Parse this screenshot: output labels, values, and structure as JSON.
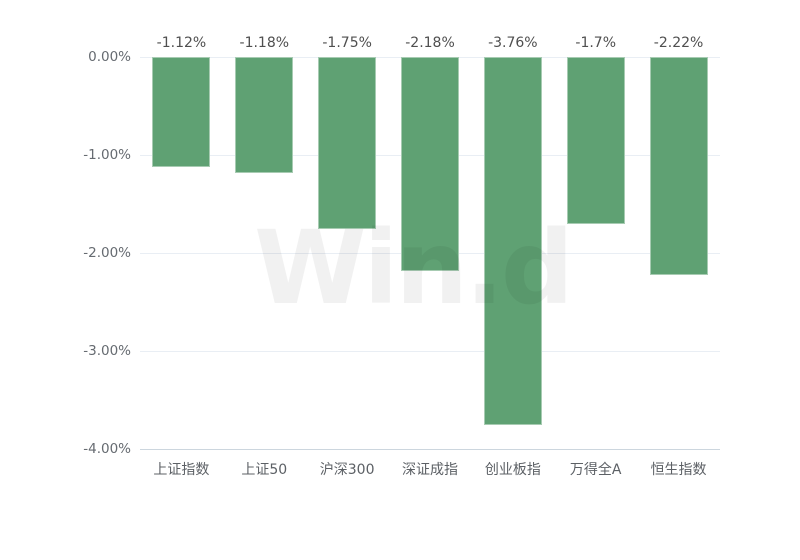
{
  "chart_data": {
    "type": "bar",
    "title": "",
    "xlabel": "",
    "ylabel": "",
    "categories": [
      "上证指数",
      "上证50",
      "沪深300",
      "深证成指",
      "创业板指",
      "万得全A",
      "恒生指数"
    ],
    "values": [
      -1.12,
      -1.18,
      -1.75,
      -2.18,
      -3.76,
      -1.7,
      -2.22
    ],
    "data_labels": [
      "-1.12%",
      "-1.18%",
      "-1.75%",
      "-2.18%",
      "-3.76%",
      "-1.7%",
      "-2.22%"
    ],
    "y_tick_labels": [
      "0.00%",
      "-1.00%",
      "-2.00%",
      "-3.00%",
      "-4.00%"
    ],
    "y_tick_values": [
      0,
      -1,
      -2,
      -3,
      -4
    ],
    "ylim": [
      -4,
      0
    ],
    "grid": true,
    "legend": false,
    "bar_color": "#5fa173",
    "gridline_color": "#e9eef4",
    "axisline_color": "#ccd6de",
    "watermark": "Win.d"
  }
}
